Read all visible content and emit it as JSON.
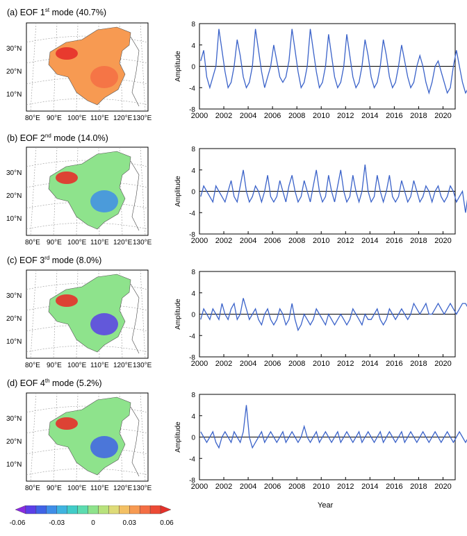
{
  "panels": [
    {
      "prefix": "(a) EOF 1",
      "ordinal": "st",
      "suffix": " mode (40.7%)"
    },
    {
      "prefix": "(b) EOF 2",
      "ordinal": "nd",
      "suffix": " mode (14.0%)"
    },
    {
      "prefix": "(c) EOF 3",
      "ordinal": "rd",
      "suffix": " mode (8.0%)"
    },
    {
      "prefix": "(d) EOF 4",
      "ordinal": "th",
      "suffix": " mode (5.2%)"
    }
  ],
  "map": {
    "lat_labels": [
      "30°N",
      "20°N",
      "10°N"
    ],
    "lon_labels": [
      "80°E",
      "90°E",
      "100°E",
      "110°E",
      "120°E",
      "130°E"
    ]
  },
  "colorbar": {
    "ticks": [
      "-0.06",
      "-0.03",
      "0",
      "0.03",
      "0.06"
    ],
    "colors": [
      "#8a2be2",
      "#5b3fe8",
      "#3f63e6",
      "#3f8ee8",
      "#3fb4e0",
      "#41ccc8",
      "#5cdcb0",
      "#8ee38c",
      "#b8e27c",
      "#dedb78",
      "#f3c064",
      "#f79a52",
      "#f46e44",
      "#ec4a35",
      "#e5302a"
    ]
  },
  "chart_data": [
    {
      "type": "line",
      "ylabel": "Amplitude",
      "xlabel": "",
      "ylim": [
        -8,
        8
      ],
      "yticks": [
        -8,
        -4,
        0,
        4,
        8
      ],
      "xlim": [
        2000,
        2021
      ],
      "xticks": [
        "2000",
        "2002",
        "2004",
        "2006",
        "2008",
        "2010",
        "2012",
        "2014",
        "2016",
        "2018",
        "2020"
      ],
      "series": [
        {
          "x_start": 2000.1,
          "x_step": 0.25,
          "values": [
            1,
            3,
            -2,
            -4,
            -2,
            0,
            7,
            3,
            -1,
            -4,
            -3,
            0,
            5,
            2,
            -2,
            -4,
            -3,
            0,
            7,
            3,
            -1,
            -4,
            -2,
            0,
            4,
            1,
            -2,
            -3,
            -2,
            1,
            7,
            3,
            -1,
            -4,
            -3,
            0,
            7,
            3,
            -1,
            -4,
            -3,
            0,
            6,
            2,
            -2,
            -4,
            -3,
            0,
            6,
            2,
            -2,
            -4,
            -3,
            0,
            5,
            2,
            -2,
            -4,
            -3,
            0,
            5,
            2,
            -2,
            -4,
            -3,
            0,
            4,
            1,
            -2,
            -4,
            -3,
            0,
            2,
            0,
            -3,
            -5,
            -3,
            0,
            1,
            -1,
            -3,
            -5,
            -4,
            0,
            3,
            0,
            -3,
            -5,
            -4,
            -4
          ]
        }
      ]
    },
    {
      "type": "line",
      "ylabel": "Amplitude",
      "xlabel": "",
      "ylim": [
        -8,
        8
      ],
      "yticks": [
        -8,
        -4,
        0,
        4,
        8
      ],
      "xlim": [
        2000,
        2021
      ],
      "xticks": [
        "2000",
        "2002",
        "2004",
        "2006",
        "2008",
        "2010",
        "2012",
        "2014",
        "2016",
        "2018",
        "2020"
      ],
      "series": [
        {
          "x_start": 2000.1,
          "x_step": 0.25,
          "values": [
            -1,
            1,
            0,
            -1,
            -2,
            1,
            0,
            -1,
            -2,
            0,
            2,
            -1,
            -2,
            1,
            4,
            0,
            -2,
            -1,
            1,
            0,
            -2,
            0,
            3,
            -1,
            -2,
            -1,
            2,
            0,
            -2,
            1,
            3,
            0,
            -2,
            -1,
            2,
            0,
            -2,
            1,
            4,
            0,
            -2,
            -1,
            3,
            0,
            -2,
            1,
            4,
            0,
            -2,
            -1,
            3,
            0,
            -2,
            0,
            5,
            0,
            -2,
            -1,
            3,
            0,
            -2,
            0,
            3,
            -1,
            -2,
            -1,
            2,
            0,
            -2,
            -1,
            2,
            0,
            -2,
            -1,
            1,
            0,
            -2,
            0,
            1,
            -1,
            -2,
            -1,
            1,
            0,
            -2,
            -1,
            0,
            -4,
            0,
            1,
            -1,
            -1
          ]
        }
      ]
    },
    {
      "type": "line",
      "ylabel": "Amplitude",
      "xlabel": "",
      "ylim": [
        -8,
        8
      ],
      "yticks": [
        -8,
        -4,
        0,
        4,
        8
      ],
      "xlim": [
        2000,
        2021
      ],
      "xticks": [
        "2000",
        "2002",
        "2004",
        "2006",
        "2008",
        "2010",
        "2012",
        "2014",
        "2016",
        "2018",
        "2020"
      ],
      "series": [
        {
          "x_start": 2000.1,
          "x_step": 0.25,
          "values": [
            -1,
            1,
            0,
            -1,
            1,
            0,
            -1,
            2,
            0,
            -1,
            1,
            2,
            -1,
            0,
            3,
            1,
            -1,
            0,
            1,
            -1,
            -2,
            0,
            1,
            -1,
            -2,
            -1,
            1,
            0,
            -2,
            -1,
            2,
            -1,
            -3,
            -2,
            0,
            -1,
            -2,
            -1,
            1,
            0,
            -1,
            -2,
            0,
            -1,
            -2,
            -1,
            0,
            -1,
            -2,
            -1,
            1,
            0,
            -1,
            -2,
            0,
            -1,
            -1,
            0,
            1,
            -1,
            -2,
            -1,
            1,
            0,
            -1,
            0,
            1,
            0,
            -1,
            0,
            2,
            1,
            0,
            1,
            2,
            0,
            0,
            1,
            2,
            1,
            0,
            1,
            2,
            1,
            0,
            1,
            2,
            2,
            1,
            2,
            1,
            1
          ]
        }
      ]
    },
    {
      "type": "line",
      "ylabel": "Amplitude",
      "xlabel": "Year",
      "ylim": [
        -8,
        8
      ],
      "yticks": [
        -8,
        -4,
        0,
        4,
        8
      ],
      "xlim": [
        2000,
        2021
      ],
      "xticks": [
        "2000",
        "2002",
        "2004",
        "2006",
        "2008",
        "2010",
        "2012",
        "2014",
        "2016",
        "2018",
        "2020"
      ],
      "series": [
        {
          "x_start": 2000.1,
          "x_step": 0.25,
          "values": [
            1,
            0,
            -1,
            0,
            1,
            -1,
            -2,
            0,
            1,
            0,
            -1,
            1,
            0,
            -1,
            1,
            6,
            0,
            -2,
            -1,
            0,
            1,
            -1,
            0,
            1,
            0,
            -1,
            0,
            1,
            -1,
            0,
            1,
            0,
            -1,
            0,
            2,
            0,
            -1,
            0,
            1,
            -1,
            0,
            1,
            0,
            -1,
            0,
            1,
            -1,
            0,
            1,
            0,
            -1,
            0,
            1,
            -1,
            0,
            1,
            0,
            -1,
            0,
            1,
            -1,
            0,
            1,
            0,
            -1,
            0,
            1,
            -1,
            0,
            1,
            0,
            -1,
            0,
            1,
            0,
            -1,
            0,
            1,
            0,
            -1,
            0,
            1,
            0,
            -1,
            0,
            1,
            0,
            -1,
            0,
            1,
            -1,
            -1
          ]
        }
      ]
    }
  ]
}
